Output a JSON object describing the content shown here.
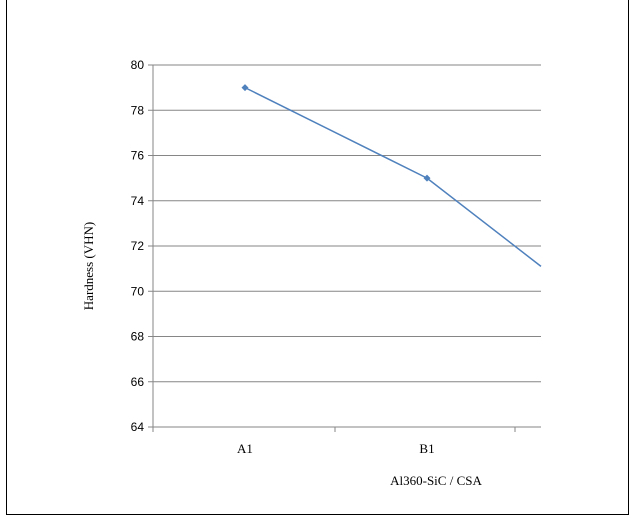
{
  "chart_data": {
    "type": "line",
    "title": "",
    "xlabel": "Al360-SiC / CSA",
    "ylabel": "Hardness (VHN)",
    "categories": [
      "A1",
      "B1"
    ],
    "series": [
      {
        "values": [
          79,
          75
        ],
        "color": "#4f81bd"
      }
    ],
    "trend_end_value": 71.1,
    "ylim": [
      64,
      80
    ],
    "yticks": [
      64,
      66,
      68,
      70,
      72,
      74,
      76,
      78,
      80
    ],
    "grid": true,
    "legend": "none"
  }
}
